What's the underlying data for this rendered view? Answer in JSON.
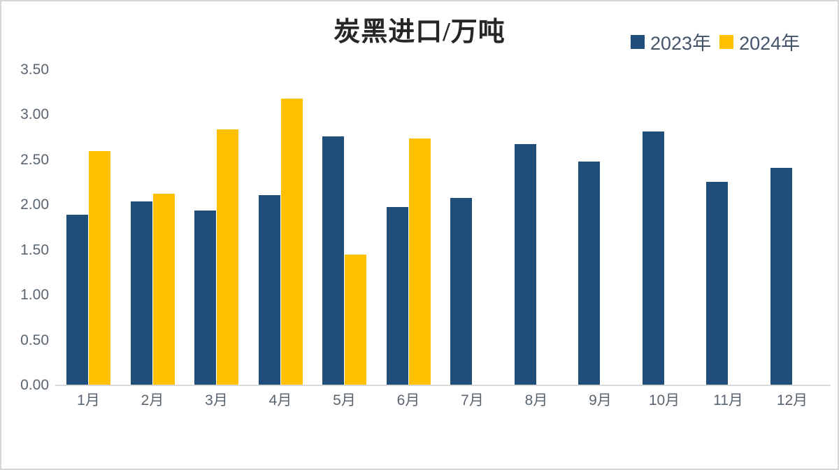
{
  "title": "炭黑进口/万吨",
  "legend": [
    {
      "label": "2023年",
      "color": "#1F4E79"
    },
    {
      "label": "2024年",
      "color": "#FFC000"
    }
  ],
  "colors": {
    "series_2023": "#1F4E79",
    "series_2024": "#FFC000",
    "axis_line": "#D9D9D9",
    "axis_text": "#5B6570",
    "title_text": "#262626",
    "legend_text": "#44546A"
  },
  "chart_data": {
    "type": "bar",
    "title": "炭黑进口/万吨",
    "categories": [
      "1月",
      "2月",
      "3月",
      "4月",
      "5月",
      "6月",
      "7月",
      "8月",
      "9月",
      "10月",
      "11月",
      "12月"
    ],
    "series": [
      {
        "name": "2023年",
        "color": "#1F4E79",
        "values": [
          1.89,
          2.04,
          1.94,
          2.11,
          2.76,
          1.98,
          2.08,
          2.68,
          2.48,
          2.82,
          2.26,
          2.41
        ]
      },
      {
        "name": "2024年",
        "color": "#FFC000",
        "values": [
          2.6,
          2.13,
          2.84,
          3.18,
          1.45,
          2.74,
          null,
          null,
          null,
          null,
          null,
          null
        ]
      }
    ],
    "xlabel": "",
    "ylabel": "",
    "ylim": [
      0,
      3.5
    ],
    "ytick_step": 0.5,
    "ytick_labels": [
      "0.00",
      "0.50",
      "1.00",
      "1.50",
      "2.00",
      "2.50",
      "3.00",
      "3.50"
    ],
    "grid": false,
    "legend_position": "top-right"
  }
}
